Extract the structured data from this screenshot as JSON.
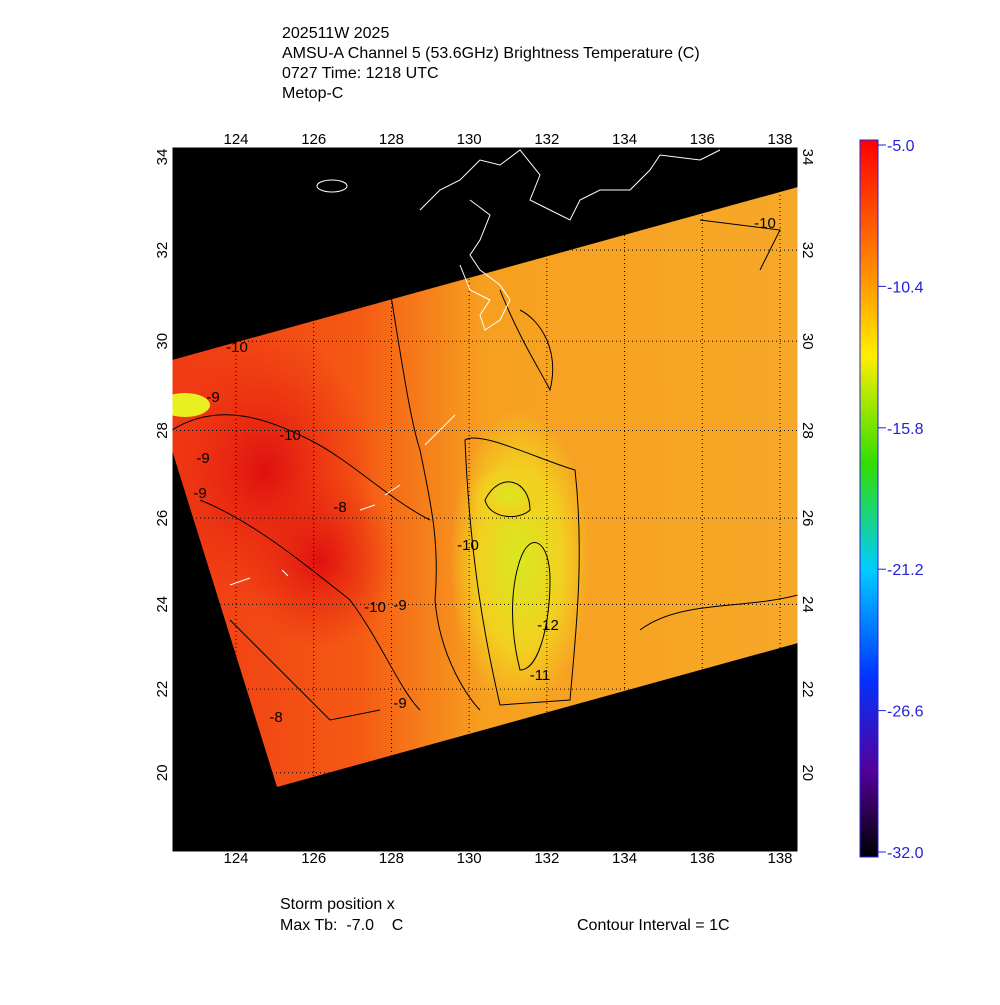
{
  "header": {
    "lines": [
      "202511W 2025",
      "AMSU-A Channel 5 (53.6GHz) Brightness Temperature (C)",
      "0727 Time: 1218 UTC",
      "Metop-C"
    ]
  },
  "map": {
    "lon_ticks": [
      "124",
      "126",
      "128",
      "130",
      "132",
      "134",
      "136",
      "138"
    ],
    "lat_ticks": [
      "20",
      "22",
      "24",
      "26",
      "28",
      "30",
      "32",
      "34"
    ],
    "contour_labels": [
      "-10",
      "-9",
      "-10",
      "-10",
      "-9",
      "-8",
      "-9",
      "-10",
      "-12",
      "-11",
      "-9",
      "-8",
      "-9",
      "-10"
    ]
  },
  "colorbar": {
    "labels": [
      "-5.0",
      "-10.4",
      "-15.8",
      "-21.2",
      "-26.6",
      "-32.0"
    ]
  },
  "footer": {
    "storm_position": "Storm position x",
    "max_tb": "Max Tb:  -7.0    C",
    "contour_interval": "Contour Interval = 1C"
  }
}
